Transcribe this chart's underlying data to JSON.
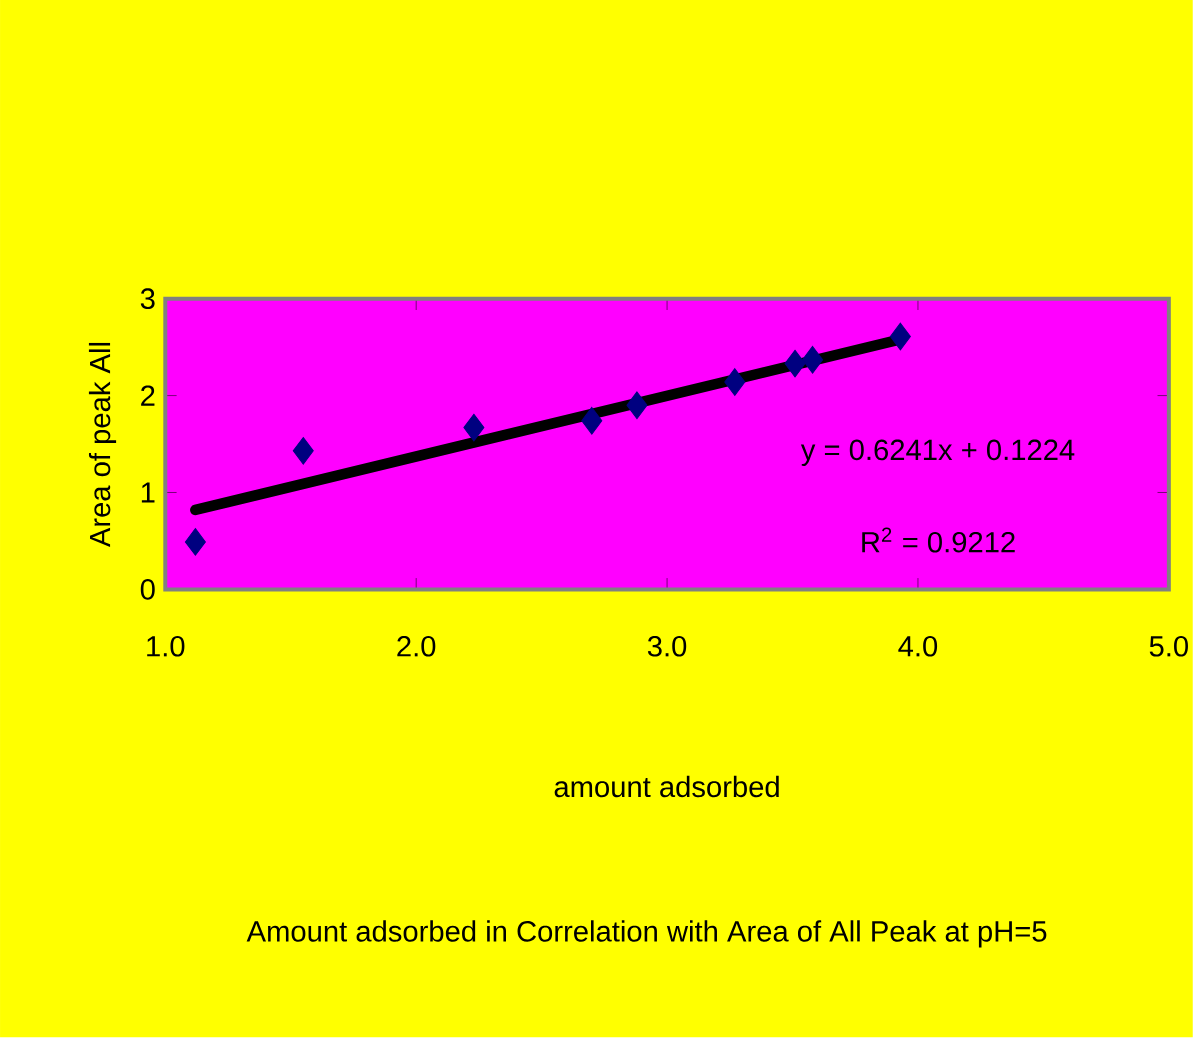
{
  "chart_data": {
    "type": "scatter",
    "title": "Amount adsorbed in Correlation with Area of All Peak at pH=5",
    "xlabel": "amount adsorbed",
    "ylabel": "Area of peak All",
    "annotations": [
      "y = 0.6241x + 0.1224",
      "R$^{2}$ = 0.9212"
    ],
    "marker": "diamond",
    "series": [
      {
        "color": "#000080",
        "x": [
          1.12,
          1.55,
          2.23,
          2.7,
          2.88,
          3.27,
          3.51,
          3.58,
          3.93
        ],
        "values": [
          0.49,
          1.43,
          1.67,
          1.74,
          1.9,
          2.14,
          2.33,
          2.37,
          2.61
        ]
      },
      {
        "type": "line",
        "color": "#000000",
        "marker": "none",
        "x": [
          1.12,
          3.93
        ],
        "values": [
          0.82,
          2.58
        ]
      }
    ],
    "xlim": [
      1.0,
      5.0
    ],
    "xticks": [
      {
        "value": 1.0,
        "label": "1.0"
      },
      {
        "value": 2.0,
        "label": "2.0"
      },
      {
        "value": 3.0,
        "label": "3.0"
      },
      {
        "value": 4.0,
        "label": "4.0"
      },
      {
        "value": 5.0,
        "label": "5.0"
      }
    ],
    "ylim": [
      0,
      3
    ],
    "yticks": [
      0,
      1,
      2,
      3
    ]
  }
}
